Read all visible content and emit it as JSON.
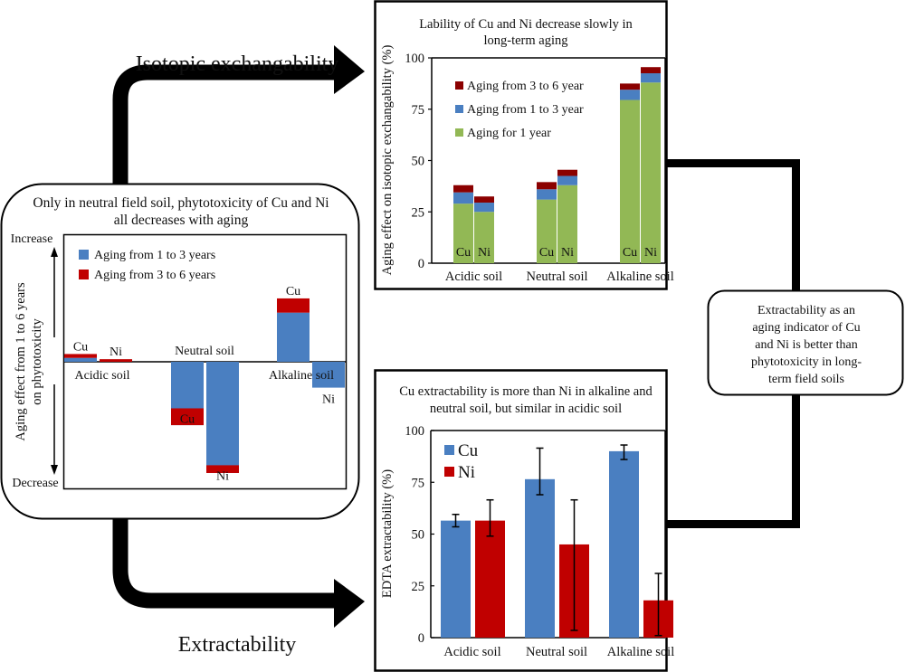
{
  "labels": {
    "arrow_top": "Isotopic exchangability",
    "arrow_bottom": "Extractability",
    "conclusion": [
      "Extractability as an",
      "aging indicator of Cu",
      "and Ni is better than",
      "phytotoxicity in long-",
      "term field soils"
    ]
  },
  "colors": {
    "blue": "#4a7fc1",
    "red": "#c00000",
    "darkred": "#8b0000",
    "green": "#92b855"
  },
  "chart_data": [
    {
      "id": "phytotoxicity",
      "type": "bar",
      "title": [
        "Only in neutral field soil, phytotoxicity of Cu and Ni",
        "all decreases with aging"
      ],
      "ylabel": [
        "Aging effect from 1 to 6 years",
        "on phytotoxicity"
      ],
      "ytop_label": "Increase",
      "ybottom_label": "Decrease",
      "categories": [
        "Acidic soil",
        "Neutral soil",
        "Alkaline soil"
      ],
      "note": "relative values, no numeric axis; positive = increase, negative = decrease",
      "ylim": [
        -10,
        7
      ],
      "legend": [
        "Aging from 1 to 3 years",
        "Aging from 3 to 6 years"
      ],
      "bars": [
        {
          "category": "Acidic soil",
          "metal": "Cu",
          "aging_1_3": 0.3,
          "aging_3_6": 0.3
        },
        {
          "category": "Acidic soil",
          "metal": "Ni",
          "aging_1_3": 0.0,
          "aging_3_6": 0.2
        },
        {
          "category": "Neutral soil",
          "metal": "Cu",
          "aging_1_3": -4.9,
          "aging_3_6": -1.3
        },
        {
          "category": "Neutral soil",
          "metal": "Ni",
          "aging_1_3": -8.6,
          "aging_3_6": -0.6
        },
        {
          "category": "Alkaline soil",
          "metal": "Cu",
          "aging_1_3": 3.8,
          "aging_3_6": 1.1
        },
        {
          "category": "Alkaline soil",
          "metal": "Ni",
          "aging_1_3": -2.0,
          "aging_3_6": 0.0
        }
      ]
    },
    {
      "id": "isotopic",
      "type": "bar",
      "title": [
        "Lability of Cu and Ni decrease slowly in",
        "long-term aging"
      ],
      "ylabel": "Aging effect on isotopic exchangability (%)",
      "ylim": [
        0,
        100
      ],
      "yticks": [
        0,
        25,
        50,
        75,
        100
      ],
      "categories": [
        "Acidic soil",
        "Neutral soil",
        "Alkaline soil"
      ],
      "legend": [
        "Aging from 3 to 6 year",
        "Aging from 1 to 3 year",
        "Aging for 1 year"
      ],
      "bars": [
        {
          "category": "Acidic soil",
          "metal": "Cu",
          "year1": 29,
          "y1_3": 34.5,
          "y3_6": 38
        },
        {
          "category": "Acidic soil",
          "metal": "Ni",
          "year1": 25,
          "y1_3": 29.5,
          "y3_6": 32.5
        },
        {
          "category": "Neutral soil",
          "metal": "Cu",
          "year1": 31,
          "y1_3": 36,
          "y3_6": 39.5
        },
        {
          "category": "Neutral soil",
          "metal": "Ni",
          "year1": 38,
          "y1_3": 42.5,
          "y3_6": 45.5
        },
        {
          "category": "Alkaline soil",
          "metal": "Cu",
          "year1": 79.5,
          "y1_3": 84.5,
          "y3_6": 87.5
        },
        {
          "category": "Alkaline soil",
          "metal": "Ni",
          "year1": 88,
          "y1_3": 92.5,
          "y3_6": 95.5
        }
      ]
    },
    {
      "id": "edta",
      "type": "bar",
      "title": [
        "Cu extractability is more than Ni in alkaline and",
        "neutral soil, but similar in acidic soil"
      ],
      "ylabel": "EDTA extractability (%)",
      "ylim": [
        0,
        100
      ],
      "yticks": [
        0,
        25,
        50,
        75,
        100
      ],
      "categories": [
        "Acidic soil",
        "Neutral soil",
        "Alkaline soil"
      ],
      "series": [
        {
          "name": "Cu",
          "values": [
            56.5,
            76.5,
            90
          ],
          "err_low": [
            53.5,
            69,
            86
          ],
          "err_high": [
            59.5,
            91.5,
            93
          ]
        },
        {
          "name": "Ni",
          "values": [
            56.5,
            45,
            18
          ],
          "err_low": [
            49,
            3.5,
            1
          ],
          "err_high": [
            66.5,
            66.5,
            31
          ]
        }
      ]
    }
  ]
}
